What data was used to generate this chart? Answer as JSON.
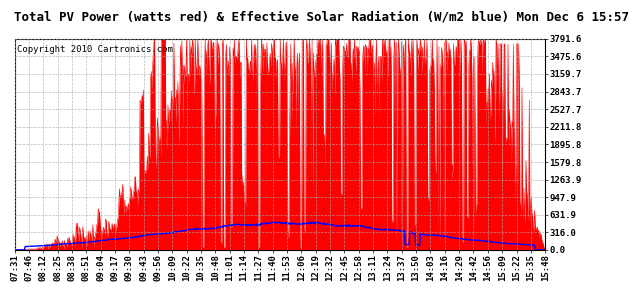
{
  "title": "Total PV Power (watts red) & Effective Solar Radiation (W/m2 blue) Mon Dec 6 15:57",
  "copyright_text": "Copyright 2010 Cartronics.com",
  "y_max": 3791.6,
  "y_min": 0.0,
  "y_ticks": [
    0.0,
    316.0,
    631.9,
    947.9,
    1263.9,
    1579.8,
    1895.8,
    2211.8,
    2527.7,
    2843.7,
    3159.7,
    3475.6,
    3791.6
  ],
  "x_labels": [
    "07:31",
    "07:46",
    "08:12",
    "08:25",
    "08:38",
    "08:51",
    "09:04",
    "09:17",
    "09:30",
    "09:43",
    "09:56",
    "10:09",
    "10:22",
    "10:35",
    "10:48",
    "11:01",
    "11:14",
    "11:27",
    "11:40",
    "11:53",
    "12:06",
    "12:19",
    "12:32",
    "12:45",
    "12:58",
    "13:11",
    "13:24",
    "13:37",
    "13:50",
    "14:03",
    "14:16",
    "14:29",
    "14:42",
    "14:56",
    "15:09",
    "15:22",
    "15:35",
    "15:48"
  ],
  "background_color": "#ffffff",
  "plot_bg_color": "#ffffff",
  "grid_color": "#aaaaaa",
  "red_fill_color": "#ff0000",
  "blue_line_color": "#0000ff",
  "title_fontsize": 9,
  "tick_fontsize": 6.5,
  "copyright_fontsize": 6.5
}
